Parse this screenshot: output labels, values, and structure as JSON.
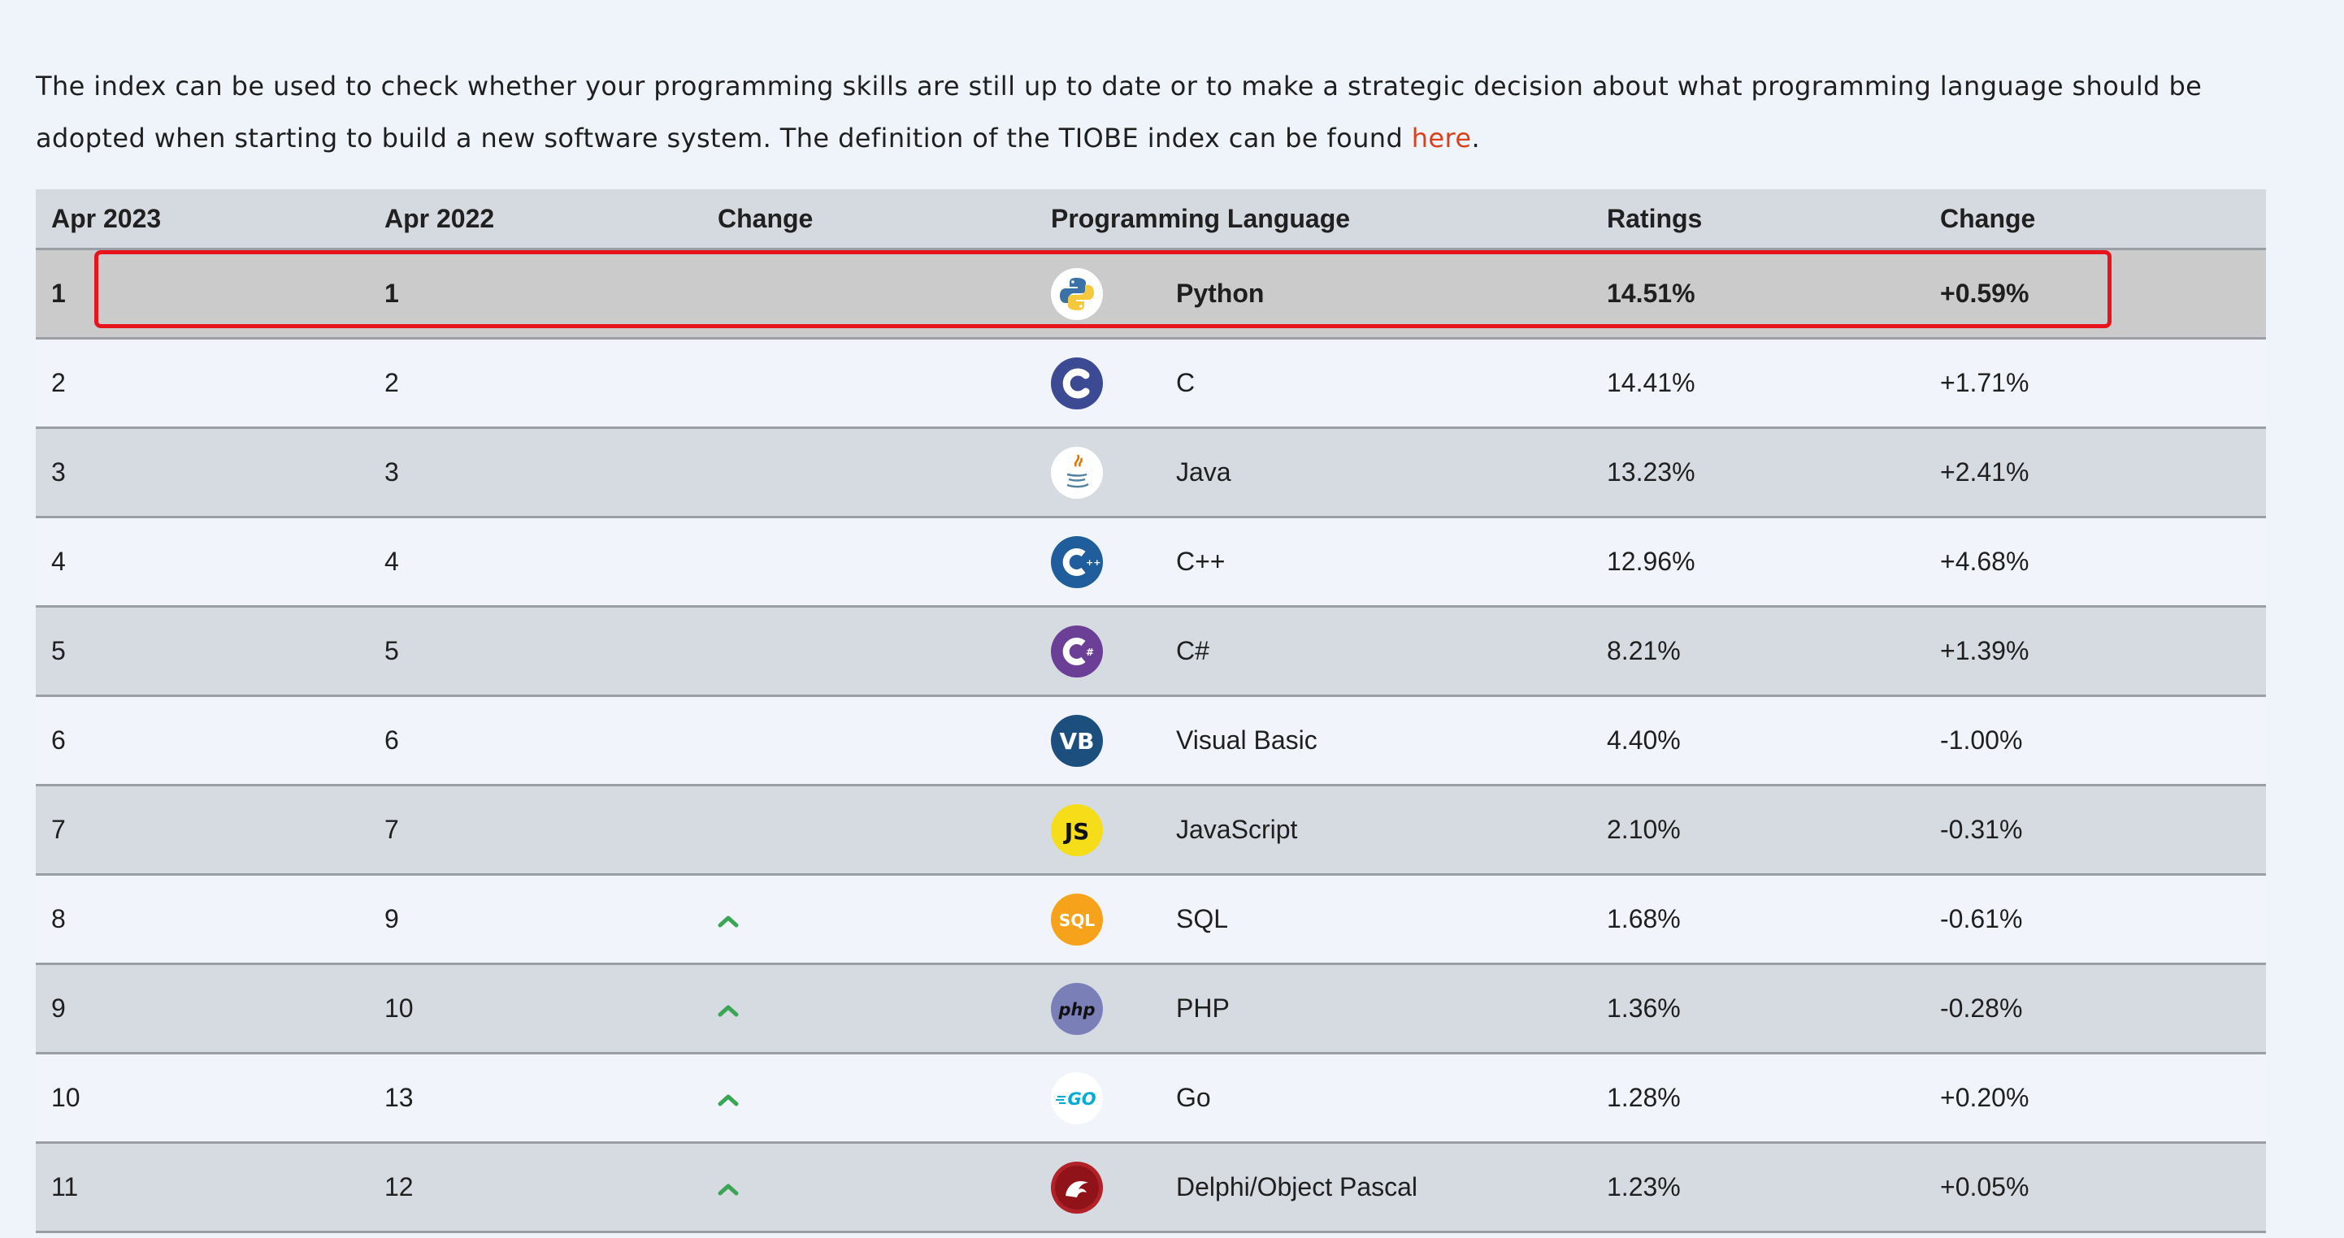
{
  "intro": {
    "text": "The index can be used to check whether your programming skills are still up to date or to make a strategic decision about what programming language should be adopted when starting to build a new software system. The definition of the TIOBE index can be found ",
    "link": "here",
    "suffix": "."
  },
  "table": {
    "headers": [
      "Apr 2023",
      "Apr 2022",
      "Change",
      "Programming Language",
      "Ratings",
      "Change"
    ],
    "rows": [
      {
        "rank": "1",
        "prev": "1",
        "up": false,
        "language": "Python",
        "ratings": "14.51%",
        "change": "+0.59%",
        "logo": "python-logo"
      },
      {
        "rank": "2",
        "prev": "2",
        "up": false,
        "language": "C",
        "ratings": "14.41%",
        "change": "+1.71%",
        "logo": "c-logo"
      },
      {
        "rank": "3",
        "prev": "3",
        "up": false,
        "language": "Java",
        "ratings": "13.23%",
        "change": "+2.41%",
        "logo": "java-logo"
      },
      {
        "rank": "4",
        "prev": "4",
        "up": false,
        "language": "C++",
        "ratings": "12.96%",
        "change": "+4.68%",
        "logo": "cpp-logo"
      },
      {
        "rank": "5",
        "prev": "5",
        "up": false,
        "language": "C#",
        "ratings": "8.21%",
        "change": "+1.39%",
        "logo": "csharp-logo"
      },
      {
        "rank": "6",
        "prev": "6",
        "up": false,
        "language": "Visual Basic",
        "ratings": "4.40%",
        "change": "-1.00%",
        "logo": "visual-basic-logo"
      },
      {
        "rank": "7",
        "prev": "7",
        "up": false,
        "language": "JavaScript",
        "ratings": "2.10%",
        "change": "-0.31%",
        "logo": "javascript-logo"
      },
      {
        "rank": "8",
        "prev": "9",
        "up": true,
        "language": "SQL",
        "ratings": "1.68%",
        "change": "-0.61%",
        "logo": "sql-logo"
      },
      {
        "rank": "9",
        "prev": "10",
        "up": true,
        "language": "PHP",
        "ratings": "1.36%",
        "change": "-0.28%",
        "logo": "php-logo"
      },
      {
        "rank": "10",
        "prev": "13",
        "up": true,
        "language": "Go",
        "ratings": "1.28%",
        "change": "+0.20%",
        "logo": "go-logo"
      },
      {
        "rank": "11",
        "prev": "12",
        "up": true,
        "language": "Delphi/Object Pascal",
        "ratings": "1.23%",
        "change": "+0.05%",
        "logo": "delphi-logo"
      }
    ]
  },
  "logo_text": {
    "visual-basic-logo": "VB",
    "javascript-logo": "JS",
    "sql-logo": "SQL",
    "php-logo": "php",
    "go-logo": "GO"
  },
  "colors": {
    "link": "#d9411e",
    "highlight_border": "#e8131c",
    "up_arrow": "#3aa655"
  }
}
